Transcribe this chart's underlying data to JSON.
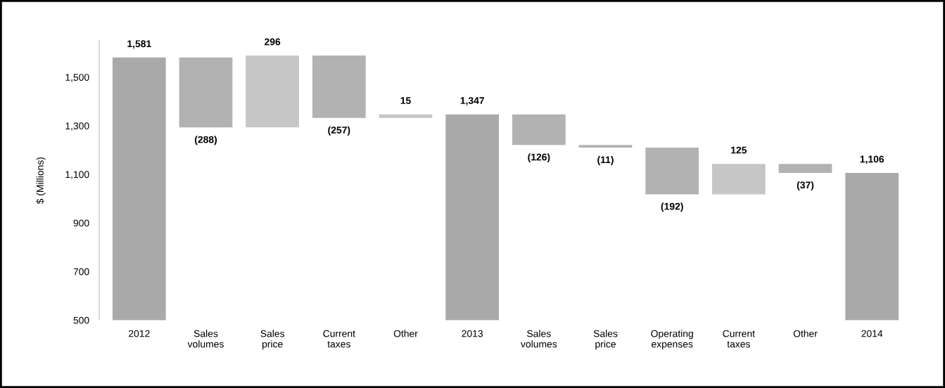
{
  "chart_data": {
    "type": "bar",
    "ylabel": "$ (Millions)",
    "categories": [
      "2012",
      "Sales\nvolumes",
      "Sales\nprice",
      "Current\ntaxes",
      "Other",
      "2013",
      "Sales\nvolumes",
      "Sales\nprice",
      "Operating\nexpenses",
      "Current\ntaxes",
      "Other",
      "2014"
    ],
    "values": [
      1581,
      -288,
      296,
      -257,
      15,
      1347,
      -126,
      -11,
      -192,
      125,
      -37,
      1106
    ],
    "base": [
      null,
      1581,
      1293,
      1589,
      1332,
      null,
      1347,
      1221,
      1210,
      1018,
      1143,
      null
    ],
    "colors": [
      "#a9a9a9",
      "#b2b2b2",
      "#c6c6c6",
      "#b2b2b2",
      "#c6c6c6",
      "#a9a9a9",
      "#b2b2b2",
      "#b2b2b2",
      "#b2b2b2",
      "#c6c6c6",
      "#b2b2b2",
      "#a9a9a9"
    ],
    "value_labels": [
      "1,581",
      "(288)",
      "296",
      "(257)",
      "15",
      "1,347",
      "(126)",
      "(11)",
      "(192)",
      "125",
      "(37)",
      "1,106"
    ],
    "ylim": [
      500,
      1650
    ],
    "yticks": [
      {
        "value": 500,
        "label": "500"
      },
      {
        "value": 700,
        "label": "700"
      },
      {
        "value": 900,
        "label": "900"
      },
      {
        "value": 1100,
        "label": "1,100"
      },
      {
        "value": 1300,
        "label": "1,300"
      },
      {
        "value": 1500,
        "label": "1,500"
      }
    ],
    "grid": false,
    "legend": false
  }
}
